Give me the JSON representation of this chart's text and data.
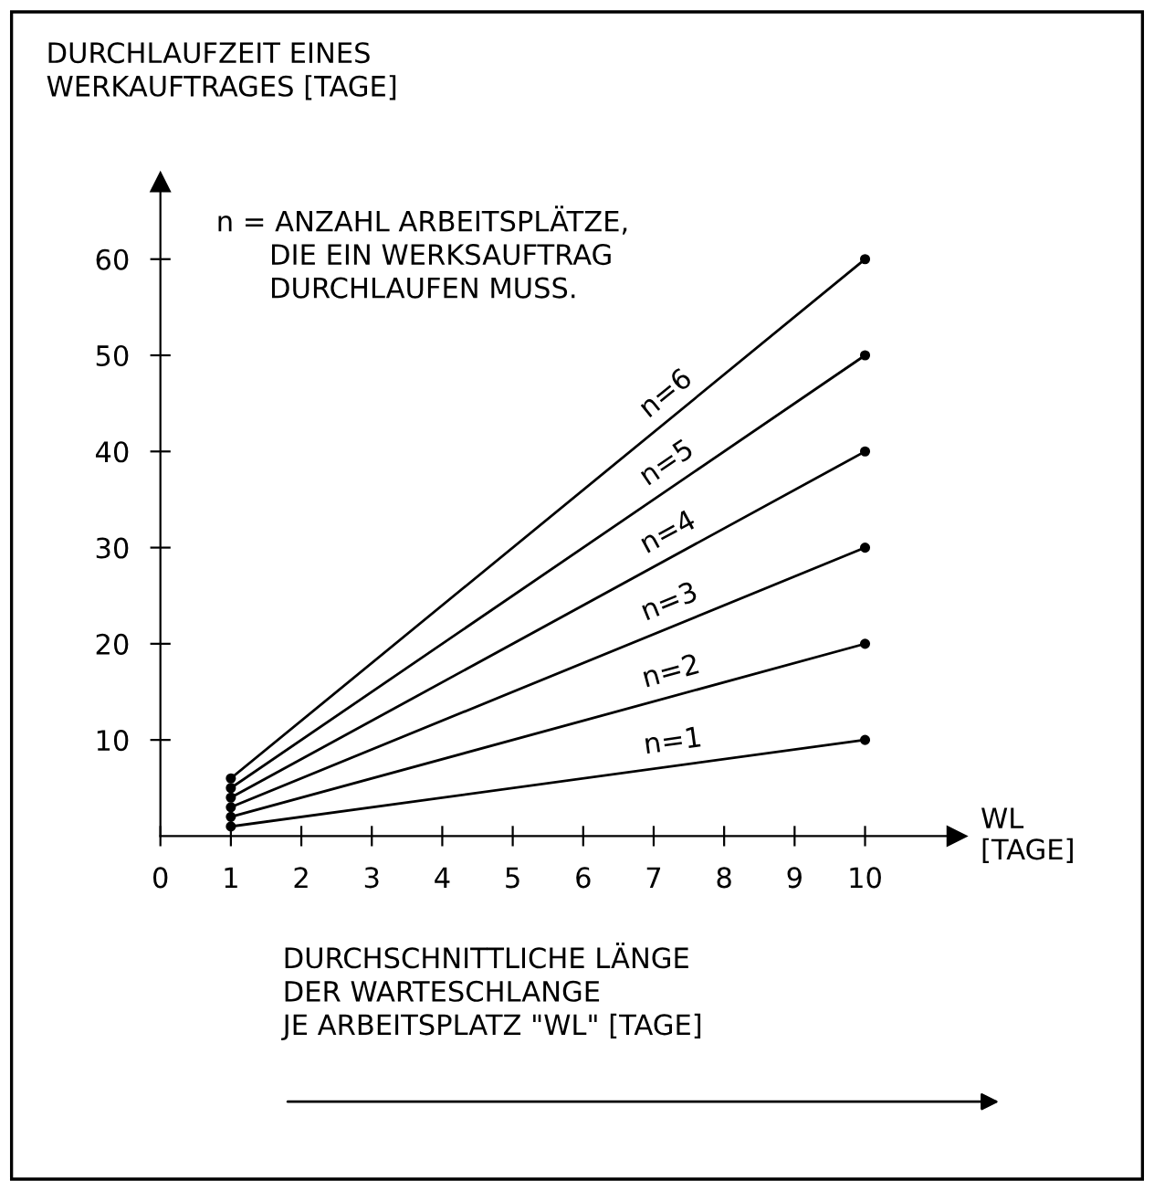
{
  "chart_data": {
    "type": "line",
    "ylabel": "DURCHLAUFZEIT EINES\nWERKAUFTRAGES [TAGE]",
    "xlabel": "WL\n[TAGE]",
    "annotations": [
      "n = ANZAHL ARBEITSPLÄTZE,\n      DIE EIN WERKSAUFTRAG\n      DURCHLAUFEN MUSS.",
      "DURCHSCHNITTLICHE LÄNGE\nDER WARTESCHLANGE\nJE ARBEITSPLATZ \"WL\" [TAGE]"
    ],
    "x": [
      1,
      10
    ],
    "series": [
      {
        "name": "n=1",
        "color": "#000000",
        "values": [
          1,
          10
        ]
      },
      {
        "name": "n=2",
        "color": "#000000",
        "values": [
          2,
          20
        ]
      },
      {
        "name": "n=3",
        "color": "#000000",
        "values": [
          3,
          30
        ]
      },
      {
        "name": "n=4",
        "color": "#000000",
        "values": [
          4,
          40
        ]
      },
      {
        "name": "n=5",
        "color": "#000000",
        "values": [
          5,
          50
        ]
      },
      {
        "name": "n=6",
        "color": "#000000",
        "values": [
          6,
          60
        ]
      }
    ],
    "xlim": [
      0,
      11.3
    ],
    "ylim": [
      0,
      68
    ],
    "xticks": [
      0,
      1,
      2,
      3,
      4,
      5,
      6,
      7,
      8,
      9,
      10
    ],
    "yticks": [
      10,
      20,
      30,
      40,
      50,
      60
    ],
    "marker": "circle",
    "line_style": "solid"
  }
}
